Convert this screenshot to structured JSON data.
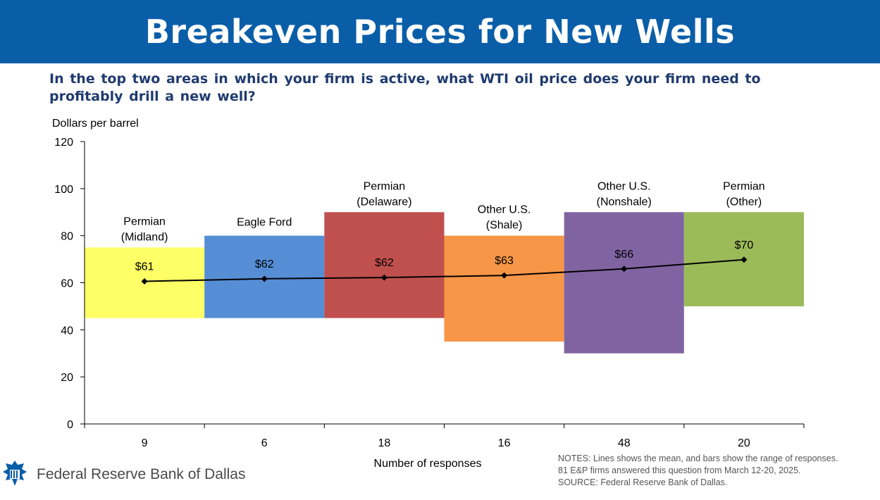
{
  "header": {
    "title": "Breakeven Prices for New Wells"
  },
  "question": "In the top two areas in which your firm is active, what WTI oil price does your firm need to profitably drill a new well?",
  "colors": {
    "banner": "#0a5ea8",
    "question_text": "#1f3b6e",
    "permian_midland": "#ffff66",
    "eagle_ford": "#558ed5",
    "permian_delaware": "#c0504d",
    "other_us_shale": "#f79646",
    "other_us_nonshale": "#8064a2",
    "permian_other": "#9bbb59"
  },
  "chart_data": {
    "type": "bar",
    "subtype": "range-bar with mean line",
    "title": "Breakeven Prices for New Wells",
    "ylabel": "Dollars per barrel",
    "xlabel": "Number of responses",
    "ylim": [
      0,
      120
    ],
    "yticks": [
      0,
      20,
      40,
      60,
      80,
      100,
      120
    ],
    "categories": [
      {
        "label_lines": [
          "Permian",
          "(Midland)"
        ],
        "responses": "9",
        "low": 45,
        "high": 75,
        "mean": 60.6,
        "mean_label": "$61",
        "color": "#ffff66"
      },
      {
        "label_lines": [
          "Eagle Ford"
        ],
        "responses": "6",
        "low": 45,
        "high": 80,
        "mean": 61.7,
        "mean_label": "$62",
        "color": "#558ed5"
      },
      {
        "label_lines": [
          "Permian",
          "(Delaware)"
        ],
        "responses": "18",
        "low": 45,
        "high": 90,
        "mean": 62.2,
        "mean_label": "$62",
        "color": "#c0504d"
      },
      {
        "label_lines": [
          "Other U.S.",
          "(Shale)"
        ],
        "responses": "16",
        "low": 35,
        "high": 80,
        "mean": 63.1,
        "mean_label": "$63",
        "color": "#f79646"
      },
      {
        "label_lines": [
          "Other U.S.",
          "(Nonshale)"
        ],
        "responses": "48",
        "low": 30,
        "high": 90,
        "mean": 65.9,
        "mean_label": "$66",
        "color": "#8064a2"
      },
      {
        "label_lines": [
          "Permian",
          "(Other)"
        ],
        "responses": "20",
        "low": 50,
        "high": 90,
        "mean": 69.8,
        "mean_label": "$70",
        "color": "#9bbb59"
      }
    ]
  },
  "notes": {
    "line1": "NOTES: Lines shows the mean, and bars show the range of responses.",
    "line2": "81 E&P firms answered this question from March 12-20, 2025.",
    "line3": "SOURCE: Federal Reserve Bank of Dallas."
  },
  "footer": {
    "bank_name": "Federal Reserve Bank of Dallas"
  }
}
